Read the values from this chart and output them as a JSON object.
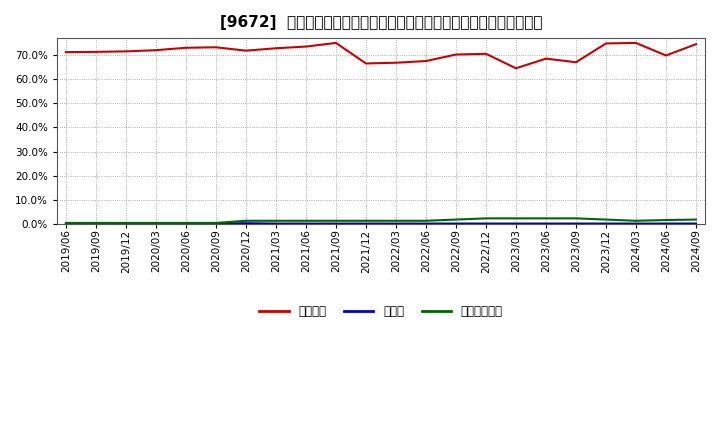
{
  "title": "[9672]  自己資本、のれん、繰延税金資産の総資産に対する比率の推移",
  "x_labels": [
    "2019/06",
    "2019/09",
    "2019/12",
    "2020/03",
    "2020/06",
    "2020/09",
    "2020/12",
    "2021/03",
    "2021/06",
    "2021/09",
    "2021/12",
    "2022/03",
    "2022/06",
    "2022/09",
    "2022/12",
    "2023/03",
    "2023/06",
    "2023/09",
    "2023/12",
    "2024/03",
    "2024/06",
    "2024/09"
  ],
  "equity": [
    71.2,
    71.3,
    71.5,
    72.0,
    73.0,
    73.2,
    71.8,
    72.8,
    73.5,
    75.0,
    66.5,
    66.8,
    67.5,
    70.2,
    70.5,
    64.5,
    68.5,
    67.0,
    74.8,
    75.0,
    69.8,
    74.5
  ],
  "noren": [
    0.15,
    0.15,
    0.15,
    0.15,
    0.15,
    0.15,
    0.3,
    0.15,
    0.15,
    0.15,
    0.15,
    0.15,
    0.15,
    0.15,
    0.15,
    0.15,
    0.15,
    0.15,
    0.15,
    0.15,
    0.15,
    0.15
  ],
  "deferred_tax": [
    0.4,
    0.4,
    0.4,
    0.4,
    0.4,
    0.4,
    1.3,
    1.3,
    1.3,
    1.3,
    1.3,
    1.3,
    1.3,
    1.8,
    2.3,
    2.3,
    2.3,
    2.3,
    1.8,
    1.3,
    1.6,
    1.8
  ],
  "equity_color": "#cc0000",
  "noren_color": "#0000cc",
  "deferred_tax_color": "#006600",
  "plot_bg_color": "#ffffff",
  "fig_bg_color": "#ffffff",
  "grid_color": "#999999",
  "legend_equity": "自己資本",
  "legend_noren": "のれん",
  "legend_deferred": "繰延税金資産",
  "ylim": [
    0,
    77
  ],
  "yticks": [
    0,
    10,
    20,
    30,
    40,
    50,
    60,
    70
  ],
  "title_fontsize": 11,
  "tick_fontsize": 7.5,
  "legend_fontsize": 8.5
}
